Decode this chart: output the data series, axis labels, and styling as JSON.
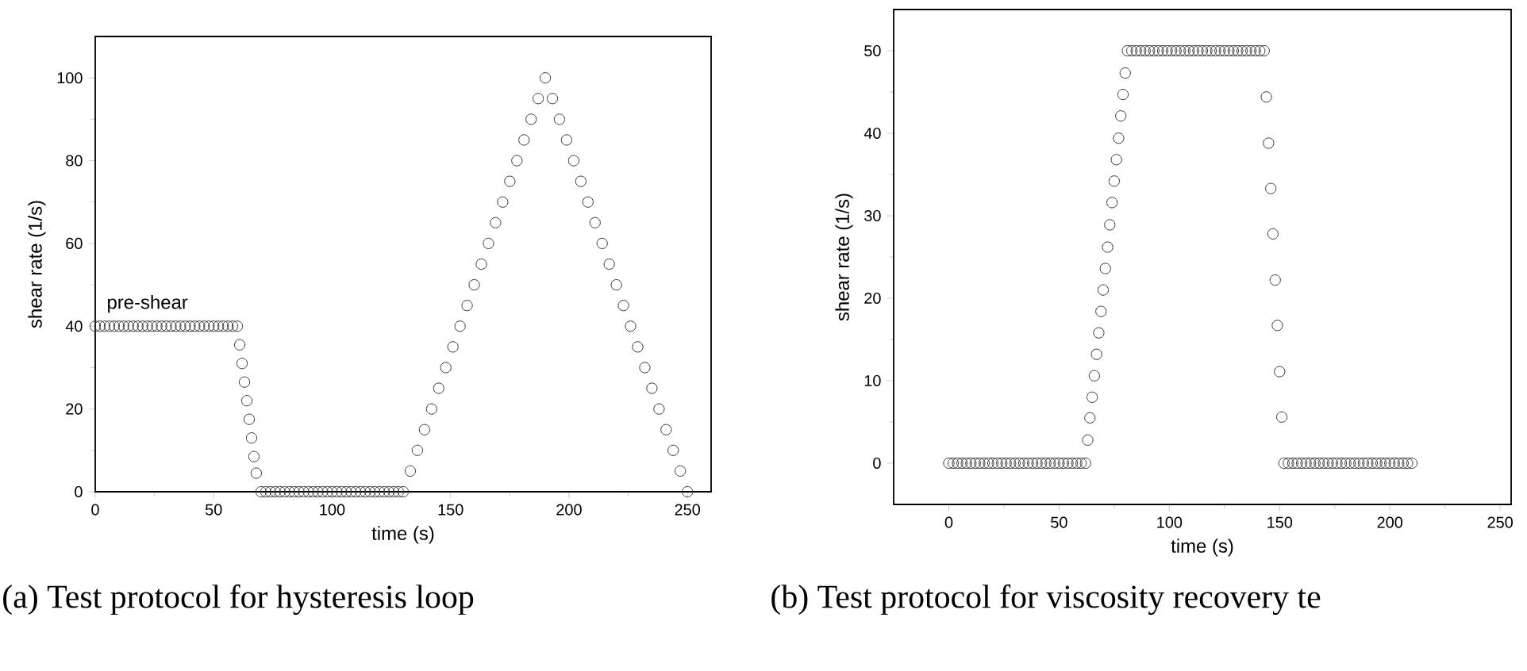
{
  "chart_data": [
    {
      "type": "scatter",
      "xlabel": "time (s)",
      "ylabel": "shear rate (1/s)",
      "marker": "circle",
      "color": "#333333",
      "x": [
        0,
        2,
        4,
        6,
        8,
        10,
        12,
        14,
        16,
        18,
        20,
        22,
        24,
        26,
        28,
        30,
        32,
        34,
        36,
        38,
        40,
        42,
        44,
        46,
        48,
        50,
        52,
        54,
        56,
        58,
        60,
        61,
        62,
        63,
        64,
        65,
        66,
        67,
        68,
        70,
        72,
        74,
        76,
        78,
        80,
        82,
        84,
        86,
        88,
        90,
        92,
        94,
        96,
        98,
        100,
        102,
        104,
        106,
        108,
        110,
        112,
        114,
        116,
        118,
        120,
        122,
        124,
        126,
        128,
        130,
        133,
        136,
        139,
        142,
        145,
        148,
        151,
        154,
        157,
        160,
        163,
        166,
        169,
        172,
        175,
        178,
        181,
        184,
        187,
        190,
        193,
        196,
        199,
        202,
        205,
        208,
        211,
        214,
        217,
        220,
        223,
        226,
        229,
        232,
        235,
        238,
        241,
        244,
        247,
        250
      ],
      "values": [
        40,
        40,
        40,
        40,
        40,
        40,
        40,
        40,
        40,
        40,
        40,
        40,
        40,
        40,
        40,
        40,
        40,
        40,
        40,
        40,
        40,
        40,
        40,
        40,
        40,
        40,
        40,
        40,
        40,
        40,
        40,
        35.5,
        31,
        26.5,
        22,
        17.5,
        13,
        8.5,
        4.5,
        0,
        0,
        0,
        0,
        0,
        0,
        0,
        0,
        0,
        0,
        0,
        0,
        0,
        0,
        0,
        0,
        0,
        0,
        0,
        0,
        0,
        0,
        0,
        0,
        0,
        0,
        0,
        0,
        0,
        0,
        0,
        5,
        10,
        15,
        20,
        25,
        30,
        35,
        40,
        45,
        50,
        55,
        60,
        65,
        70,
        75,
        80,
        85,
        90,
        95,
        100,
        95,
        90,
        85,
        80,
        75,
        70,
        65,
        60,
        55,
        50,
        45,
        40,
        35,
        30,
        25,
        20,
        15,
        10,
        5,
        0
      ],
      "xlim": [
        0,
        260
      ],
      "ylim": [
        0,
        110
      ],
      "xticks": [
        0,
        50,
        100,
        150,
        200,
        250
      ],
      "yticks": [
        0,
        20,
        40,
        60,
        80,
        100
      ],
      "annotations": [
        {
          "text": "pre-shear",
          "x": 22,
          "y": 40
        },
        "(a) Test protocol for hysteresis loop"
      ]
    },
    {
      "type": "scatter",
      "xlabel": "time (s)",
      "ylabel": "shear rate (1/s)",
      "marker": "circle",
      "color": "#333333",
      "x": [
        0,
        2,
        4,
        6,
        8,
        10,
        12,
        14,
        16,
        18,
        20,
        22,
        24,
        26,
        28,
        30,
        32,
        34,
        36,
        38,
        40,
        42,
        44,
        46,
        48,
        50,
        52,
        54,
        56,
        58,
        60,
        62,
        63,
        64,
        65,
        66,
        67,
        68,
        69,
        70,
        71,
        72,
        73,
        74,
        75,
        76,
        77,
        78,
        79,
        80,
        81,
        83,
        85,
        87,
        89,
        91,
        93,
        95,
        97,
        99,
        101,
        103,
        105,
        107,
        109,
        111,
        113,
        115,
        117,
        119,
        121,
        123,
        125,
        127,
        129,
        131,
        133,
        135,
        137,
        139,
        141,
        143,
        144,
        145,
        146,
        147,
        148,
        149,
        150,
        151,
        152,
        154,
        156,
        158,
        160,
        162,
        164,
        166,
        168,
        170,
        172,
        174,
        176,
        178,
        180,
        182,
        184,
        186,
        188,
        190,
        192,
        194,
        196,
        198,
        200,
        202,
        204,
        206,
        208,
        210
      ],
      "values": [
        0,
        0,
        0,
        0,
        0,
        0,
        0,
        0,
        0,
        0,
        0,
        0,
        0,
        0,
        0,
        0,
        0,
        0,
        0,
        0,
        0,
        0,
        0,
        0,
        0,
        0,
        0,
        0,
        0,
        0,
        0,
        0,
        2.8,
        5.5,
        8,
        10.6,
        13.2,
        15.8,
        18.4,
        21,
        23.6,
        26.2,
        28.9,
        31.6,
        34.2,
        36.8,
        39.4,
        42.1,
        44.7,
        47.3,
        50,
        50,
        50,
        50,
        50,
        50,
        50,
        50,
        50,
        50,
        50,
        50,
        50,
        50,
        50,
        50,
        50,
        50,
        50,
        50,
        50,
        50,
        50,
        50,
        50,
        50,
        50,
        50,
        50,
        50,
        50,
        50,
        44.4,
        38.8,
        33.3,
        27.8,
        22.2,
        16.7,
        11.1,
        5.6,
        0,
        0,
        0,
        0,
        0,
        0,
        0,
        0,
        0,
        0,
        0,
        0,
        0,
        0,
        0,
        0,
        0,
        0,
        0,
        0,
        0,
        0,
        0,
        0,
        0,
        0,
        0,
        0,
        0,
        0
      ],
      "xlim": [
        -25,
        255
      ],
      "ylim": [
        -5,
        55
      ],
      "xticks": [
        0,
        50,
        100,
        150,
        200,
        250
      ],
      "yticks": [
        0,
        10,
        20,
        30,
        40,
        50
      ],
      "annotations": [
        "(b) Test protocol for viscosity recovery te"
      ]
    }
  ]
}
